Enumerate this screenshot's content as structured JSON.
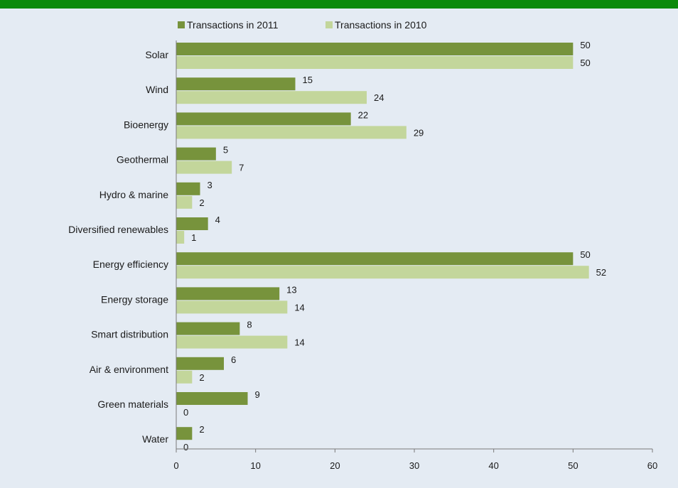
{
  "colors": {
    "background": "#e4ebf3",
    "top_bar": "#0b8a0b",
    "series_2011": "#77933c",
    "series_2010": "#c3d69b",
    "axis": "#7a7a7a"
  },
  "chart_data": {
    "type": "bar",
    "orientation": "horizontal",
    "title": "",
    "xlabel": "",
    "ylabel": "",
    "categories": [
      "Solar",
      "Wind",
      "Bioenergy",
      "Geothermal",
      "Hydro & marine",
      "Diversified renewables",
      "Energy efficiency",
      "Energy storage",
      "Smart distribution",
      "Air & environment",
      "Green materials",
      "Water"
    ],
    "series": [
      {
        "name": "Transactions in 2011",
        "values": [
          50,
          15,
          22,
          5,
          3,
          4,
          50,
          13,
          8,
          6,
          9,
          2
        ]
      },
      {
        "name": "Transactions in 2010",
        "values": [
          50,
          24,
          29,
          7,
          2,
          1,
          52,
          14,
          14,
          2,
          0,
          0
        ]
      }
    ],
    "xlim": [
      0,
      60
    ],
    "xticks": [
      "0",
      "10",
      "20",
      "30",
      "40",
      "50",
      "60"
    ],
    "grid": false,
    "legend_position": "top"
  }
}
